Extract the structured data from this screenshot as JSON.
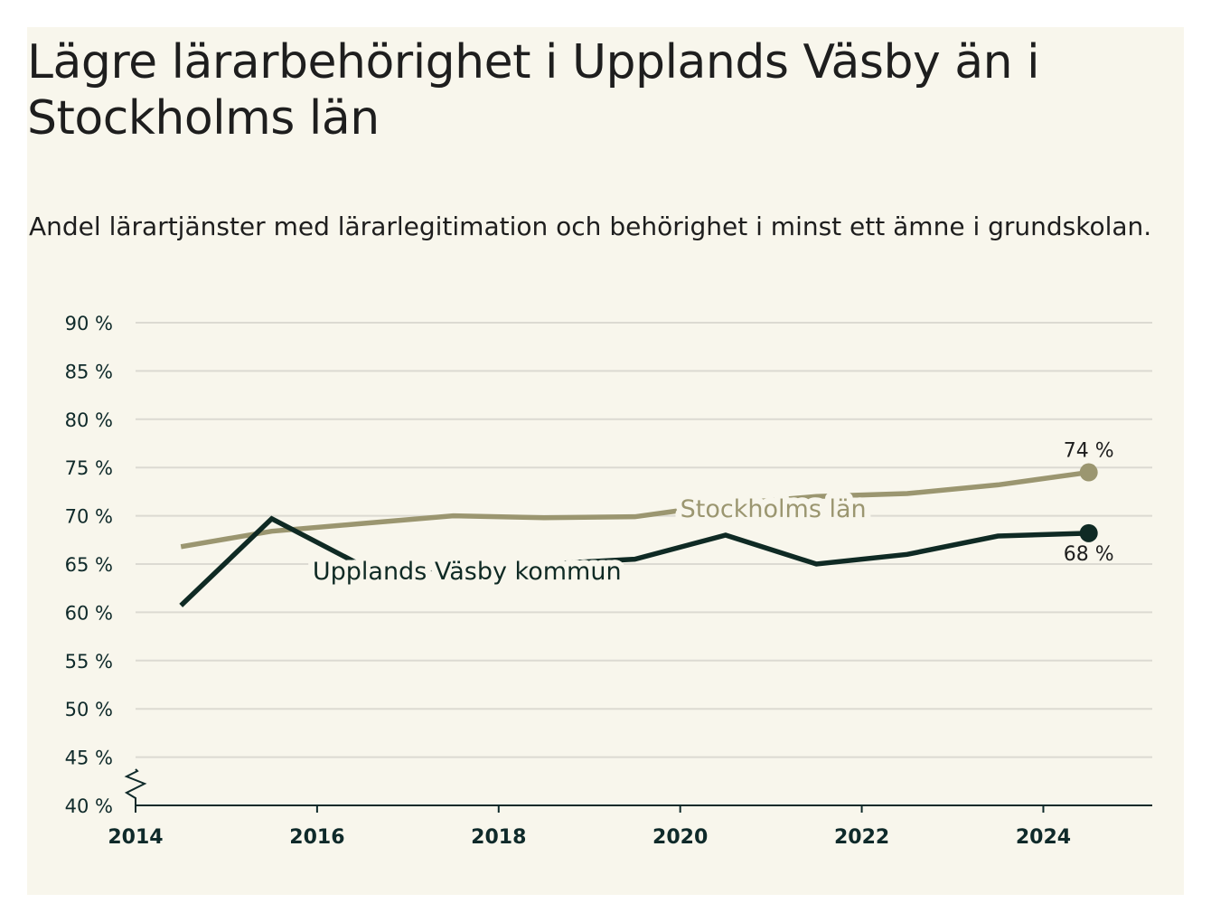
{
  "title": "Lägre lärarbehörighet i Upplands Väsby än i Stockholms län",
  "subtitle": "Andel lärartjänster med lärarlegitimation och behörighet i minst ett ämne i grundskolan.",
  "colors": {
    "background": "#f8f6ec",
    "stockholm": "#9b9670",
    "vasby": "#0f2a24",
    "grid": "#dcdad2",
    "axis": "#0f2a2a"
  },
  "chart_data": {
    "type": "line",
    "xlim": [
      2014,
      2025.2
    ],
    "ylim": [
      40,
      90
    ],
    "y_ticks": [
      40,
      45,
      50,
      55,
      60,
      65,
      70,
      75,
      80,
      85,
      90
    ],
    "y_tick_labels": [
      "40 %",
      "45 %",
      "50 %",
      "55 %",
      "60 %",
      "65 %",
      "70 %",
      "75 %",
      "80 %",
      "85 %",
      "90 %"
    ],
    "x_ticks": [
      2014,
      2016,
      2018,
      2020,
      2022,
      2024
    ],
    "x_tick_labels": [
      "2014",
      "2016",
      "2018",
      "2020",
      "2022",
      "2024"
    ],
    "y_axis_break": true,
    "grid": true,
    "series": [
      {
        "name": "Stockholms län",
        "color": "#9b9670",
        "x": [
          2014.5,
          2015.5,
          2016.5,
          2017.5,
          2018.5,
          2019.5,
          2020.5,
          2021.5,
          2022.5,
          2023.5,
          2024.5
        ],
        "values": [
          66.8,
          68.4,
          69.2,
          70.0,
          69.8,
          69.9,
          71.2,
          72.0,
          72.3,
          73.2,
          74.5
        ],
        "end_label": "74 %"
      },
      {
        "name": "Upplands Väsby kommun",
        "color": "#0f2a24",
        "x": [
          2014.5,
          2015.5,
          2016.5,
          2017.5,
          2018.5,
          2019.5,
          2020.5,
          2021.5,
          2022.5,
          2023.5,
          2024.5
        ],
        "values": [
          60.7,
          69.7,
          64.8,
          64.4,
          65.0,
          65.5,
          68.0,
          65.0,
          66.0,
          67.9,
          68.2
        ],
        "end_label": "68 %"
      }
    ]
  }
}
